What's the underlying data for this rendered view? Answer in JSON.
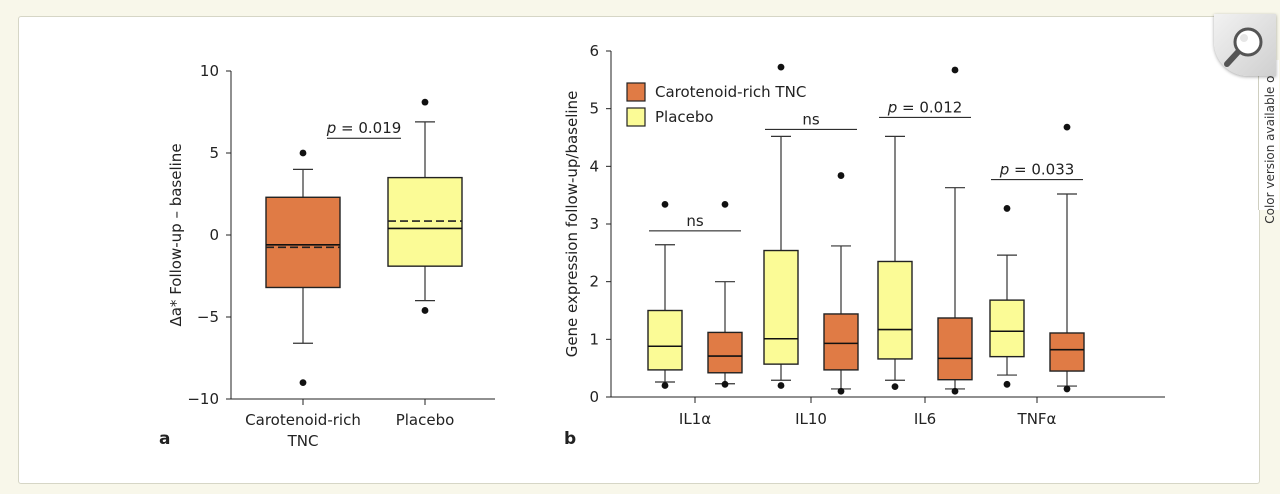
{
  "side_tab": {
    "label": "Color version available online"
  },
  "icons": {
    "zoom": "magnifier-icon"
  },
  "colors": {
    "tnc": "#e07b45",
    "placebo": "#fbfb96"
  },
  "chart_data": [
    {
      "panel": "a",
      "type": "box",
      "title": "",
      "xlabel": "",
      "ylabel": "Δa* Follow-up – baseline",
      "ylim": [
        -10,
        10
      ],
      "yticks": [
        10,
        5,
        0,
        -5,
        -10
      ],
      "ytick_labels": [
        "10",
        "5",
        "0",
        "−5",
        "−10"
      ],
      "categories": [
        {
          "label_lines": [
            "Carotenoid-rich",
            "TNC"
          ],
          "whisker_low": -6.6,
          "q1": -3.2,
          "median": -0.6,
          "mean": -0.75,
          "q3": 2.3,
          "whisker_high": 4.0,
          "outliers": [
            5.0,
            -9.0
          ],
          "color": "tnc"
        },
        {
          "label_lines": [
            "Placebo"
          ],
          "whisker_low": -4.0,
          "q1": -1.9,
          "median": 0.4,
          "mean": 0.85,
          "q3": 3.5,
          "whisker_high": 6.9,
          "outliers": [
            8.1,
            -4.6
          ],
          "color": "placebo"
        }
      ],
      "annotations": [
        {
          "text": "p = 0.019",
          "from": 0,
          "to": 1,
          "y": 5.9
        }
      ]
    },
    {
      "panel": "b",
      "type": "box",
      "title": "",
      "xlabel": "",
      "ylabel": "Gene expression follow-up/baseline",
      "ylim": [
        0,
        6
      ],
      "yticks": [
        0,
        1,
        2,
        3,
        4,
        5,
        6
      ],
      "ytick_labels": [
        "0",
        "1",
        "2",
        "3",
        "4",
        "5",
        "6"
      ],
      "legend": {
        "position": "top-left",
        "entries": [
          {
            "label": "Carotenoid-rich TNC",
            "color": "tnc"
          },
          {
            "label": "Placebo",
            "color": "placebo"
          }
        ]
      },
      "categories": [
        "IL1α",
        "IL10",
        "IL6",
        "TNFα"
      ],
      "groups": [
        {
          "category": "IL1α",
          "placebo": {
            "whisker_low": 0.26,
            "q1": 0.47,
            "median": 0.88,
            "q3": 1.5,
            "whisker_high": 2.64,
            "outliers": [
              0.2,
              3.34
            ]
          },
          "tnc": {
            "whisker_low": 0.23,
            "q1": 0.42,
            "median": 0.71,
            "q3": 1.12,
            "whisker_high": 2.0,
            "outliers": [
              0.22,
              3.34
            ]
          },
          "label": "ns",
          "label_y": 2.88
        },
        {
          "category": "IL10",
          "placebo": {
            "whisker_low": 0.29,
            "q1": 0.57,
            "median": 1.01,
            "q3": 2.54,
            "whisker_high": 4.52,
            "outliers": [
              0.2,
              5.72
            ]
          },
          "tnc": {
            "whisker_low": 0.14,
            "q1": 0.47,
            "median": 0.93,
            "q3": 1.44,
            "whisker_high": 2.62,
            "outliers": [
              0.1,
              3.84
            ]
          },
          "label": "ns",
          "label_y": 4.64
        },
        {
          "category": "IL6",
          "placebo": {
            "whisker_low": 0.29,
            "q1": 0.66,
            "median": 1.17,
            "q3": 2.35,
            "whisker_high": 4.52,
            "outliers": [
              0.18
            ]
          },
          "tnc": {
            "whisker_low": 0.14,
            "q1": 0.3,
            "median": 0.67,
            "q3": 1.37,
            "whisker_high": 3.63,
            "outliers": [
              0.1,
              5.67
            ]
          },
          "label": "p = 0.012",
          "label_y": 4.85
        },
        {
          "category": "TNFα",
          "placebo": {
            "whisker_low": 0.38,
            "q1": 0.7,
            "median": 1.14,
            "q3": 1.68,
            "whisker_high": 2.46,
            "outliers": [
              0.22,
              3.27
            ]
          },
          "tnc": {
            "whisker_low": 0.19,
            "q1": 0.45,
            "median": 0.82,
            "q3": 1.11,
            "whisker_high": 3.52,
            "outliers": [
              0.14,
              4.68
            ]
          },
          "label": "p = 0.033",
          "label_y": 3.77
        }
      ]
    }
  ]
}
